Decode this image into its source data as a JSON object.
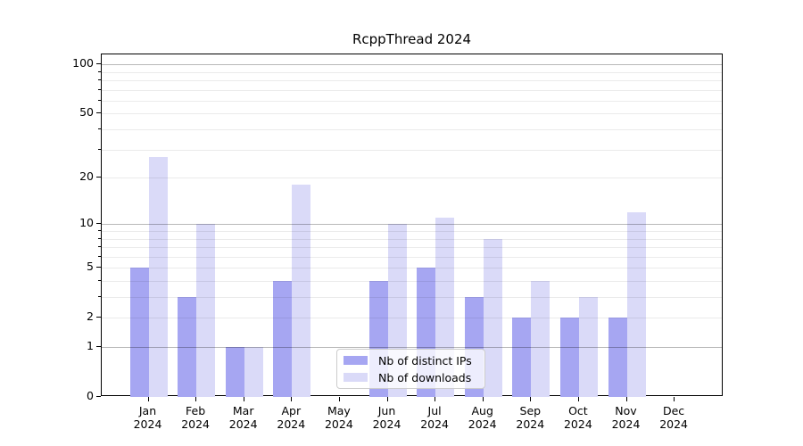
{
  "title": "RcppThread 2024",
  "chart_data": {
    "type": "bar",
    "title": "RcppThread 2024",
    "categories": [
      "Jan\n2024",
      "Feb\n2024",
      "Mar\n2024",
      "Apr\n2024",
      "May\n2024",
      "Jun\n2024",
      "Jul\n2024",
      "Aug\n2024",
      "Sep\n2024",
      "Oct\n2024",
      "Nov\n2024",
      "Dec\n2024"
    ],
    "series": [
      {
        "name": "Nb of distinct IPs",
        "color": "#a6a6f2",
        "values": [
          5,
          3,
          1,
          4,
          0,
          4,
          5,
          3,
          2,
          2,
          2,
          0
        ]
      },
      {
        "name": "Nb of downloads",
        "color": "#dadaf8",
        "values": [
          27,
          10,
          1,
          18,
          0,
          10,
          11,
          8,
          4,
          3,
          12,
          0
        ]
      }
    ],
    "xlabel": "",
    "ylabel": "",
    "yscale": "log1p",
    "ylim": [
      0,
      115
    ],
    "yticks": [
      0,
      1,
      2,
      5,
      10,
      20,
      50,
      100
    ],
    "minor_yticks": [
      3,
      4,
      6,
      7,
      8,
      9,
      30,
      40,
      60,
      70,
      80,
      90
    ],
    "major_gridlines": [
      1,
      10,
      100
    ],
    "grid": true,
    "legend_position": "lower center"
  }
}
